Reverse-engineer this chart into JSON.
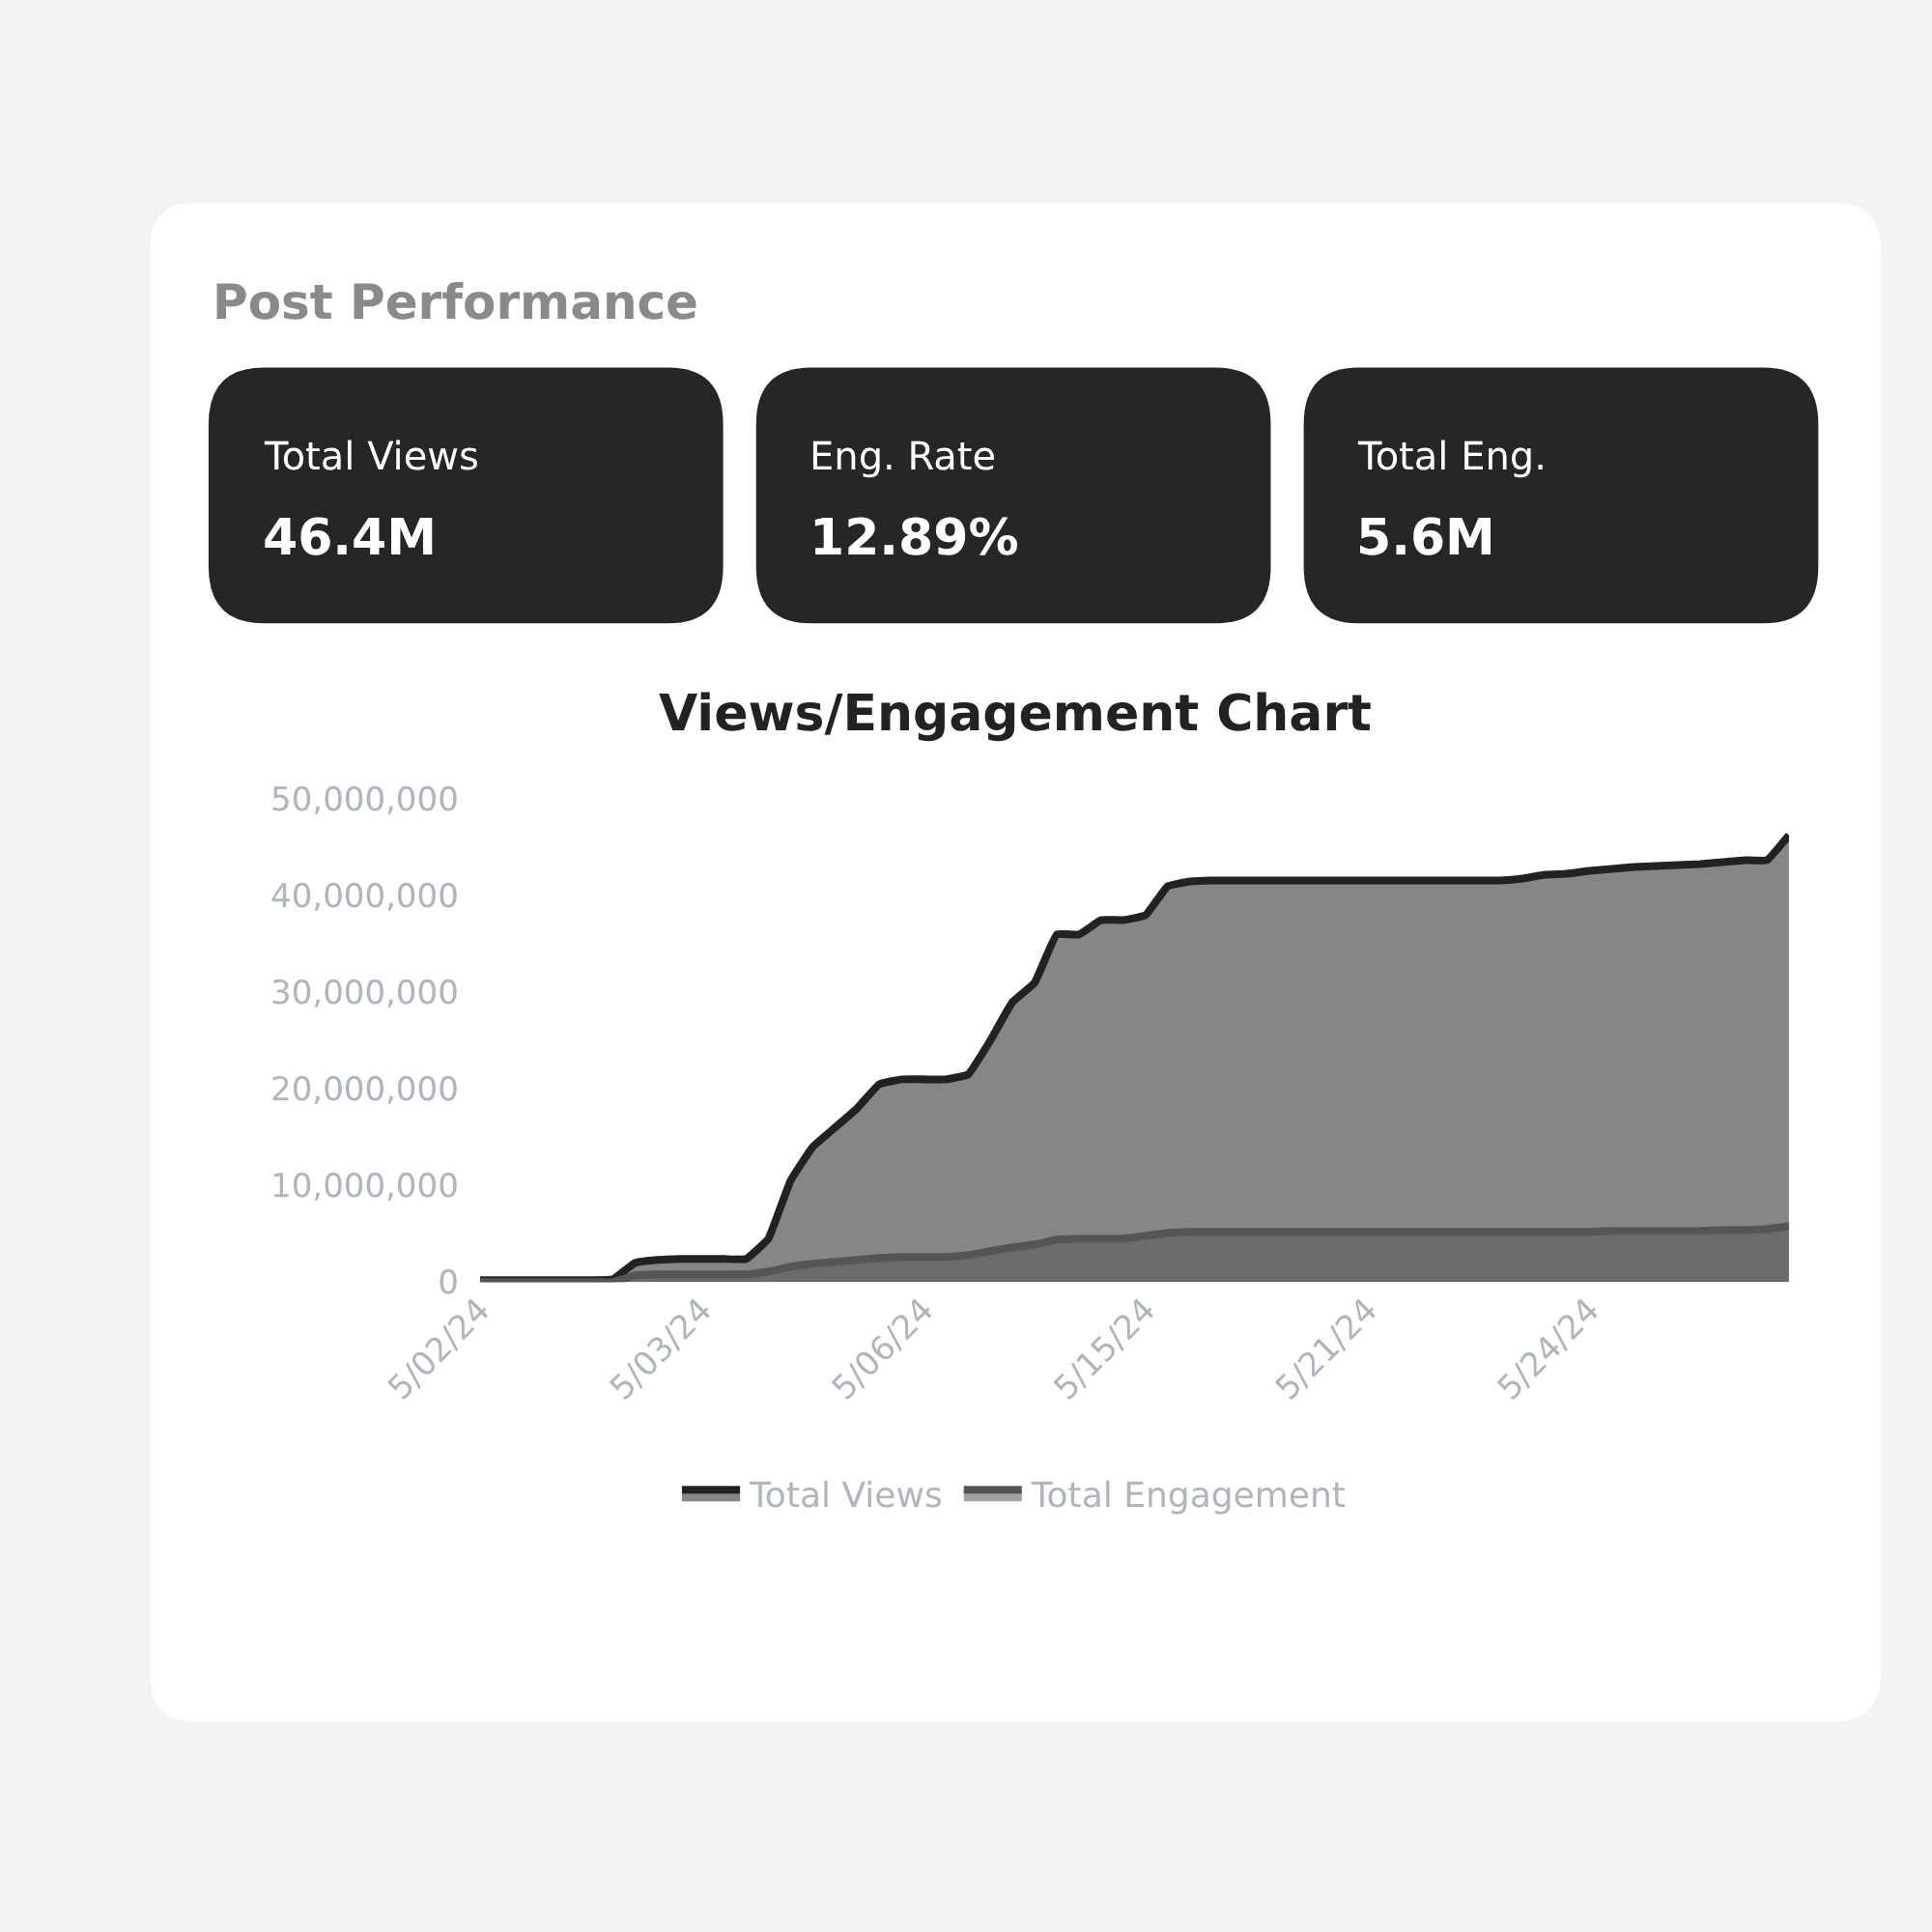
{
  "chart_data": [
    {
      "type": "other",
      "title": "Post Performance",
      "categories": [
        "Total Views",
        "Eng. Rate",
        "Total Eng."
      ],
      "value_labels": [
        "46.4M",
        "12.89%",
        "5.6M"
      ]
    },
    {
      "type": "area",
      "title": "Views/Engagement Chart",
      "categories": [
        "5/02/24",
        null,
        null,
        null,
        null,
        null,
        null,
        null,
        null,
        null,
        "5/03/24",
        null,
        null,
        null,
        null,
        null,
        null,
        null,
        null,
        null,
        "5/06/24",
        null,
        null,
        null,
        null,
        null,
        null,
        null,
        null,
        null,
        "5/15/24",
        null,
        null,
        null,
        null,
        null,
        null,
        null,
        null,
        null,
        "5/21/24",
        null,
        null,
        null,
        null,
        null,
        null,
        null,
        null,
        null,
        "5/24/24",
        null,
        null,
        null,
        null,
        null,
        null,
        null,
        null,
        null
      ],
      "series": [
        {
          "name": "Total Views",
          "color": "#222222",
          "values": [
            200000,
            200000,
            200000,
            200000,
            200000,
            200000,
            300000,
            2000000,
            2300000,
            2400000,
            2400000,
            2400000,
            2400000,
            4500000,
            10500000,
            14000000,
            16000000,
            18000000,
            20500000,
            21000000,
            21000000,
            21000000,
            21500000,
            25000000,
            29000000,
            31000000,
            36000000,
            36000000,
            37500000,
            37500000,
            38000000,
            41000000,
            41500000,
            41600000,
            41600000,
            41600000,
            41600000,
            41600000,
            41600000,
            41600000,
            41600000,
            41600000,
            41600000,
            41600000,
            41600000,
            41600000,
            41600000,
            41800000,
            42200000,
            42300000,
            42600000,
            42800000,
            43000000,
            43100000,
            43200000,
            43300000,
            43500000,
            43700000,
            43700000,
            46300000
          ]
        },
        {
          "name": "Total Engagement",
          "color": "#555555",
          "values": [
            0,
            0,
            0,
            0,
            0,
            0,
            0,
            700000,
            800000,
            800000,
            800000,
            800000,
            800000,
            1100000,
            1600000,
            1900000,
            2100000,
            2300000,
            2500000,
            2600000,
            2600000,
            2600000,
            2800000,
            3200000,
            3600000,
            3900000,
            4400000,
            4500000,
            4500000,
            4500000,
            4800000,
            5100000,
            5200000,
            5200000,
            5200000,
            5200000,
            5200000,
            5200000,
            5200000,
            5200000,
            5200000,
            5200000,
            5200000,
            5200000,
            5200000,
            5200000,
            5200000,
            5200000,
            5200000,
            5200000,
            5200000,
            5300000,
            5300000,
            5300000,
            5300000,
            5300000,
            5400000,
            5400000,
            5500000,
            5800000
          ]
        }
      ],
      "ylim": [
        0,
        50000000
      ],
      "yticks": [
        {
          "value": 0,
          "label": "0"
        },
        {
          "value": 10000000,
          "label": "10,000,000"
        },
        {
          "value": 20000000,
          "label": "20,000,000"
        },
        {
          "value": 30000000,
          "label": "30,000,000"
        },
        {
          "value": 40000000,
          "label": "40,000,000"
        },
        {
          "value": 50000000,
          "label": "50,000,000"
        }
      ],
      "legend": "bottom",
      "marker": "none",
      "line_style": "solid"
    }
  ]
}
